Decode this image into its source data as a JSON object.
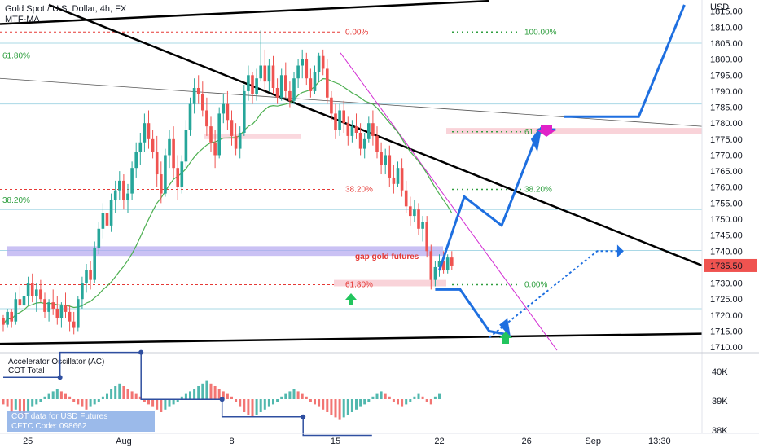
{
  "header": {
    "title": "Gold Spot / U.S. Dollar, 4h, FX",
    "indicator": "MTF-MA"
  },
  "colors": {
    "up": "#26a69a",
    "down": "#ef5350",
    "price_tag": "#ef5350",
    "trend": "#000000",
    "projection": "#1e6fe0",
    "fib_red": "#e53935",
    "fib_green": "#2e9e3e",
    "hline": "#a9d8e6",
    "zone": "#b3a6f0",
    "pink_zone": "#f8c8d0",
    "ma": "#4caf50",
    "magenta": "#d32ed3"
  },
  "oscillator": {
    "title": "Accelerator Oscillator (AC)",
    "cot_title": "COT Total",
    "cot_note_line1": "COT data for USD Futures",
    "cot_note_line2": "CFTC Code: 098662"
  },
  "annotations": {
    "gap_label": "gap gold futures"
  },
  "chart_data": {
    "type": "candlestick",
    "title": "Gold Spot / U.S. Dollar, 4h, FX",
    "currency_label": "USD",
    "y_ticks": [
      1710,
      1715,
      1720,
      1725,
      1730,
      1735,
      1740,
      1745,
      1750,
      1755,
      1760,
      1765,
      1770,
      1775,
      1780,
      1785,
      1790,
      1795,
      1800,
      1805,
      1810,
      1815
    ],
    "y_tick_labels": [
      "1710.00",
      "1715.00",
      "1720.00",
      "1725.00",
      "1730.00",
      "1735.00",
      "1740.00",
      "1745.00",
      "1750.00",
      "1755.00",
      "1760.00",
      "1765.00",
      "1770.00",
      "1775.00",
      "1780.00",
      "1785.00",
      "1790.00",
      "1795.00",
      "1800.00",
      "1805.00",
      "1810.00",
      "1815.00"
    ],
    "ylim": [
      1708.5,
      1818.5
    ],
    "x_labels": [
      "25",
      "Aug",
      "8",
      "15",
      "22",
      "26",
      "Sep",
      "13:30"
    ],
    "x_label_bars": [
      2,
      29,
      55,
      80,
      105,
      126,
      142,
      158
    ],
    "bar_count": 170,
    "last_price": 1735.5,
    "last_price_label": "1735.50",
    "osc_ticks": [
      "40K",
      "39K",
      "38K"
    ],
    "osc_tick_values": [
      40000,
      39000,
      38000
    ],
    "fib_labels": {
      "red_0": "0.00%",
      "red_382": "38.20%",
      "red_618": "61.80%",
      "green_100": "100.00%",
      "green_618": "61.80%",
      "green_382": "38.20%",
      "green_0": "0.00%",
      "left_618": "61.80%",
      "left_382": "38.20%"
    },
    "fib_levels": {
      "red_0": 1808.5,
      "red_382": 1759.3,
      "red_618": 1729.5,
      "green_100": 1808.5,
      "green_618": 1777.3,
      "green_382": 1759.3,
      "green_0": 1729.5,
      "left_618": 1801.0,
      "left_382": 1755.8
    },
    "horizontal_levels": [
      1805,
      1786,
      1753,
      1740.2,
      1722
    ],
    "zones": {
      "purple": [
        1738.5,
        1741.5
      ],
      "pink_top": [
        1776.5,
        1778.5
      ],
      "pink_bottom": [
        1729,
        1731
      ],
      "pink_left": [
        1775,
        1776.5
      ]
    },
    "candles": [
      [
        1719,
        1720,
        1715,
        1717
      ],
      [
        1717,
        1722,
        1716,
        1721
      ],
      [
        1721,
        1722,
        1716,
        1718
      ],
      [
        1718,
        1727,
        1717,
        1725
      ],
      [
        1725,
        1729,
        1722,
        1723
      ],
      [
        1723,
        1727,
        1720,
        1726
      ],
      [
        1726,
        1732,
        1723,
        1730
      ],
      [
        1730,
        1733,
        1724,
        1726
      ],
      [
        1726,
        1730,
        1721,
        1728
      ],
      [
        1728,
        1731,
        1724,
        1725
      ],
      [
        1725,
        1727,
        1719,
        1721
      ],
      [
        1721,
        1725,
        1718,
        1724
      ],
      [
        1724,
        1728,
        1720,
        1722
      ],
      [
        1722,
        1726,
        1717,
        1719
      ],
      [
        1719,
        1724,
        1716,
        1723
      ],
      [
        1723,
        1727,
        1719,
        1721
      ],
      [
        1721,
        1723,
        1715,
        1718
      ],
      [
        1718,
        1721,
        1714,
        1716
      ],
      [
        1716,
        1726,
        1715,
        1725
      ],
      [
        1725,
        1732,
        1722,
        1730
      ],
      [
        1730,
        1736,
        1727,
        1734
      ],
      [
        1734,
        1737,
        1728,
        1731
      ],
      [
        1731,
        1743,
        1730,
        1741
      ],
      [
        1741,
        1749,
        1739,
        1747
      ],
      [
        1747,
        1755,
        1744,
        1752
      ],
      [
        1752,
        1756,
        1745,
        1748
      ],
      [
        1748,
        1758,
        1746,
        1756
      ],
      [
        1756,
        1762,
        1752,
        1759
      ],
      [
        1759,
        1765,
        1756,
        1762
      ],
      [
        1762,
        1764,
        1753,
        1756
      ],
      [
        1756,
        1761,
        1752,
        1758
      ],
      [
        1758,
        1768,
        1756,
        1766
      ],
      [
        1766,
        1774,
        1763,
        1771
      ],
      [
        1771,
        1777,
        1767,
        1774
      ],
      [
        1774,
        1783,
        1771,
        1780
      ],
      [
        1780,
        1784,
        1772,
        1775
      ],
      [
        1775,
        1778,
        1769,
        1771
      ],
      [
        1771,
        1776,
        1760,
        1764
      ],
      [
        1764,
        1768,
        1755,
        1758
      ],
      [
        1758,
        1772,
        1757,
        1770
      ],
      [
        1770,
        1778,
        1766,
        1775
      ],
      [
        1775,
        1779,
        1763,
        1766
      ],
      [
        1766,
        1770,
        1756,
        1760
      ],
      [
        1760,
        1770,
        1758,
        1768
      ],
      [
        1768,
        1781,
        1766,
        1778
      ],
      [
        1778,
        1788,
        1776,
        1786
      ],
      [
        1786,
        1794,
        1783,
        1791
      ],
      [
        1791,
        1795,
        1786,
        1789
      ],
      [
        1789,
        1793,
        1782,
        1784
      ],
      [
        1784,
        1788,
        1776,
        1779
      ],
      [
        1779,
        1782,
        1771,
        1774
      ],
      [
        1774,
        1778,
        1766,
        1770
      ],
      [
        1770,
        1785,
        1769,
        1783
      ],
      [
        1783,
        1789,
        1780,
        1786
      ],
      [
        1786,
        1790,
        1778,
        1781
      ],
      [
        1781,
        1784,
        1773,
        1776
      ],
      [
        1776,
        1780,
        1770,
        1772
      ],
      [
        1772,
        1779,
        1769,
        1777
      ],
      [
        1777,
        1792,
        1776,
        1790
      ],
      [
        1790,
        1798,
        1787,
        1795
      ],
      [
        1795,
        1796,
        1786,
        1789
      ],
      [
        1789,
        1797,
        1787,
        1794
      ],
      [
        1794,
        1809,
        1793,
        1798
      ],
      [
        1798,
        1803,
        1790,
        1793
      ],
      [
        1793,
        1800,
        1790,
        1798
      ],
      [
        1798,
        1801,
        1789,
        1791
      ],
      [
        1791,
        1794,
        1786,
        1788
      ],
      [
        1788,
        1797,
        1787,
        1795
      ],
      [
        1795,
        1799,
        1788,
        1790
      ],
      [
        1790,
        1793,
        1785,
        1787
      ],
      [
        1787,
        1796,
        1786,
        1794
      ],
      [
        1794,
        1800,
        1791,
        1798
      ],
      [
        1798,
        1803,
        1794,
        1800
      ],
      [
        1800,
        1802,
        1792,
        1794
      ],
      [
        1794,
        1797,
        1788,
        1790
      ],
      [
        1790,
        1798,
        1789,
        1796
      ],
      [
        1796,
        1802,
        1793,
        1801
      ],
      [
        1801,
        1803,
        1795,
        1797
      ],
      [
        1797,
        1800,
        1786,
        1788
      ],
      [
        1788,
        1790,
        1781,
        1783
      ],
      [
        1783,
        1786,
        1775,
        1778
      ],
      [
        1778,
        1786,
        1776,
        1784
      ],
      [
        1784,
        1787,
        1777,
        1780
      ],
      [
        1780,
        1782,
        1773,
        1776
      ],
      [
        1776,
        1781,
        1774,
        1779
      ],
      [
        1779,
        1783,
        1775,
        1777
      ],
      [
        1777,
        1780,
        1770,
        1772
      ],
      [
        1772,
        1777,
        1769,
        1775
      ],
      [
        1775,
        1782,
        1774,
        1780
      ],
      [
        1780,
        1784,
        1773,
        1776
      ],
      [
        1776,
        1779,
        1769,
        1771
      ],
      [
        1771,
        1774,
        1764,
        1767
      ],
      [
        1767,
        1772,
        1764,
        1770
      ],
      [
        1770,
        1773,
        1760,
        1763
      ],
      [
        1763,
        1767,
        1758,
        1761
      ],
      [
        1761,
        1768,
        1760,
        1766
      ],
      [
        1766,
        1769,
        1757,
        1759
      ],
      [
        1759,
        1762,
        1752,
        1754
      ],
      [
        1754,
        1757,
        1748,
        1751
      ],
      [
        1751,
        1756,
        1749,
        1753
      ],
      [
        1753,
        1755,
        1745,
        1747
      ],
      [
        1747,
        1751,
        1743,
        1749
      ],
      [
        1749,
        1751,
        1738,
        1740
      ],
      [
        1740,
        1742,
        1728,
        1731
      ],
      [
        1731,
        1737,
        1729,
        1735
      ],
      [
        1735,
        1739,
        1732,
        1737
      ],
      [
        1737,
        1740,
        1733,
        1734
      ],
      [
        1734,
        1739,
        1733,
        1738
      ],
      [
        1738,
        1740,
        1734,
        1735.5
      ]
    ],
    "ac_values": [
      -2,
      -3,
      -5,
      -4,
      -6,
      -7,
      -5,
      -3,
      -2,
      -1,
      1,
      2,
      3,
      4,
      3,
      2,
      1,
      -1,
      -2,
      -3,
      -4,
      -3,
      -2,
      -1,
      1,
      2,
      4,
      5,
      6,
      5,
      4,
      3,
      2,
      1,
      -1,
      -2,
      -3,
      -4,
      -5,
      -4,
      -3,
      -2,
      -1,
      1,
      2,
      3,
      4,
      5,
      6,
      7,
      6,
      5,
      4,
      3,
      2,
      1,
      -1,
      -3,
      -5,
      -6,
      -7,
      -6,
      -5,
      -4,
      -3,
      -2,
      -1,
      1,
      2,
      3,
      4,
      3,
      2,
      1,
      -1,
      -2,
      -3,
      -4,
      -5,
      -6,
      -7,
      -8,
      -7,
      -6,
      -5,
      -4,
      -3,
      -2,
      -1,
      1,
      2,
      3,
      2,
      1,
      -1,
      -2,
      -3,
      -2,
      -1,
      1,
      2,
      1,
      -1,
      -2,
      1,
      2
    ],
    "cot_steps": [
      [
        0,
        40100
      ],
      [
        28,
        40100
      ],
      [
        28,
        40950
      ],
      [
        68,
        40950
      ],
      [
        68,
        39350
      ],
      [
        108,
        39350
      ],
      [
        108,
        38750
      ],
      [
        148,
        38750
      ],
      [
        148,
        38120
      ],
      [
        182,
        38120
      ]
    ],
    "projection_blue": [
      [
        105,
        1734
      ],
      [
        111,
        1757
      ],
      [
        120,
        1748
      ],
      [
        129,
        1778
      ],
      [
        133,
        1778
      ]
    ],
    "projection_blue_top": [
      [
        135,
        1782
      ],
      [
        153,
        1782
      ],
      [
        164,
        1817
      ]
    ],
    "projection_blue_down": [
      [
        104,
        1728
      ],
      [
        110,
        1728
      ],
      [
        117,
        1715
      ],
      [
        121,
        1714
      ]
    ],
    "projection_dotted": [
      [
        117,
        1713
      ],
      [
        143,
        1740
      ],
      [
        149,
        1740
      ]
    ]
  }
}
